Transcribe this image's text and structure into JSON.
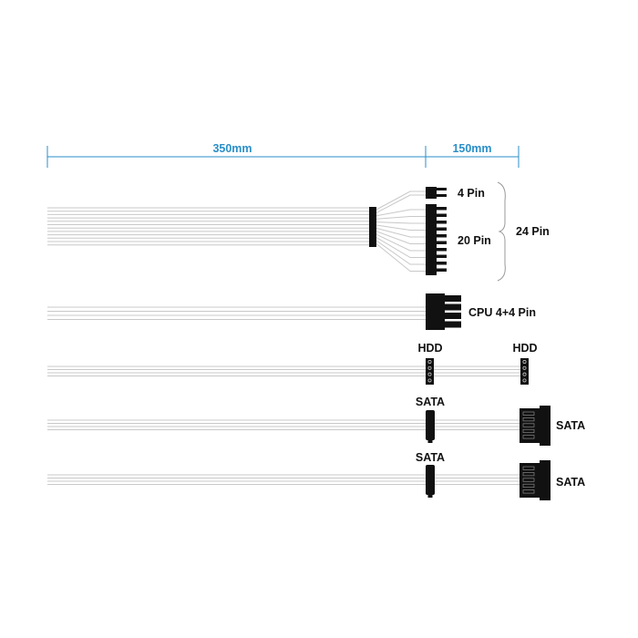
{
  "dimensions": {
    "first_segment": "350mm",
    "second_segment": "150mm",
    "color": "#2a8fc8"
  },
  "main_power": {
    "small_label": "4 Pin",
    "large_label": "20 Pin",
    "total_label": "24 Pin"
  },
  "cpu": {
    "label": "CPU 4+4 Pin"
  },
  "hdd": {
    "label_mid": "HDD",
    "label_end": "HDD"
  },
  "sata1": {
    "label_mid": "SATA",
    "label_end": "SATA"
  },
  "sata2": {
    "label_mid": "SATA",
    "label_end": "SATA"
  }
}
